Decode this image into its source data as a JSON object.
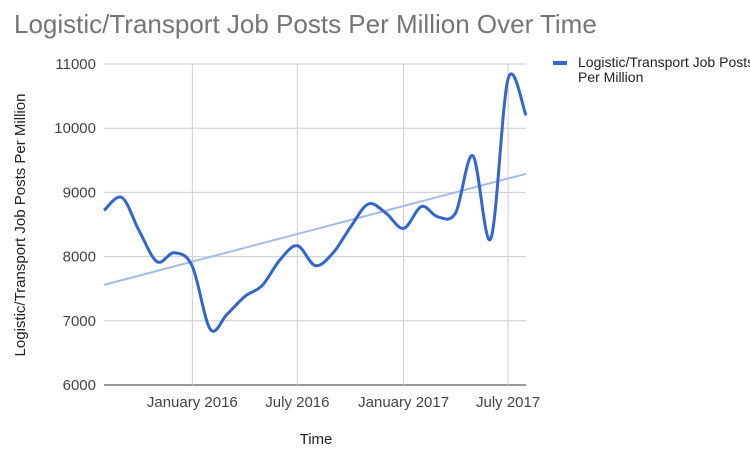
{
  "chart_data": {
    "type": "line",
    "title": "Logistic/Transport Job Posts Per Million Over Time",
    "xlabel": "Time",
    "ylabel": "Logistic/Transport Job Posts Per Million",
    "ylim": [
      6000,
      11000
    ],
    "yticks": [
      6000,
      7000,
      8000,
      9000,
      10000,
      11000
    ],
    "xlim": [
      "2015-08-01",
      "2017-08-01"
    ],
    "xticks": [
      {
        "date": "2016-01-01",
        "label": "January 2016"
      },
      {
        "date": "2016-07-01",
        "label": "July 2016"
      },
      {
        "date": "2017-01-01",
        "label": "January 2017"
      },
      {
        "date": "2017-07-01",
        "label": "July 2017"
      }
    ],
    "grid": true,
    "legend": {
      "position": "right"
    },
    "series": [
      {
        "name": "Logistic/Transport Job Posts Per Million",
        "color": "#3366cc",
        "points": [
          [
            "2015-08-01",
            8720
          ],
          [
            "2015-09-01",
            8920
          ],
          [
            "2015-10-01",
            8400
          ],
          [
            "2015-11-01",
            7920
          ],
          [
            "2015-12-01",
            8060
          ],
          [
            "2016-01-01",
            7850
          ],
          [
            "2016-02-01",
            6870
          ],
          [
            "2016-03-01",
            7100
          ],
          [
            "2016-04-01",
            7380
          ],
          [
            "2016-05-01",
            7550
          ],
          [
            "2016-06-01",
            7950
          ],
          [
            "2016-07-01",
            8170
          ],
          [
            "2016-08-01",
            7860
          ],
          [
            "2016-09-01",
            8060
          ],
          [
            "2016-10-01",
            8460
          ],
          [
            "2016-11-01",
            8820
          ],
          [
            "2016-12-01",
            8680
          ],
          [
            "2017-01-01",
            8440
          ],
          [
            "2017-02-01",
            8780
          ],
          [
            "2017-03-01",
            8620
          ],
          [
            "2017-04-01",
            8680
          ],
          [
            "2017-05-01",
            9570
          ],
          [
            "2017-06-01",
            8280
          ],
          [
            "2017-07-01",
            10770
          ],
          [
            "2017-08-01",
            10200
          ]
        ]
      }
    ],
    "trendline": {
      "color": "#a3bbe8",
      "points": [
        [
          "2015-08-01",
          7560
        ],
        [
          "2017-08-01",
          9290
        ]
      ]
    }
  }
}
